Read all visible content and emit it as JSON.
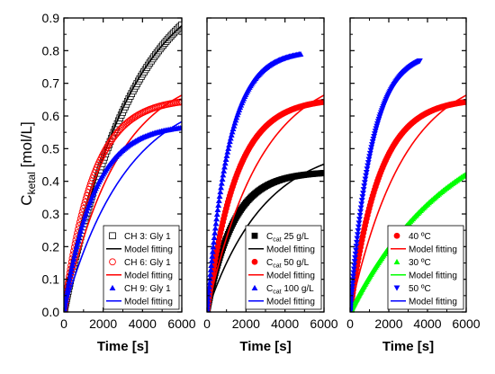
{
  "chart_data": {
    "type": "scatter",
    "ylabel": {
      "main": "C",
      "sub": "ketal",
      "unit": " [mol/L]"
    },
    "ylim": [
      0,
      0.9
    ],
    "yticks": [
      0.0,
      0.1,
      0.2,
      0.3,
      0.4,
      0.5,
      0.6,
      0.7,
      0.8,
      0.9
    ],
    "ytick_labels": [
      "0.0",
      "0.1",
      "0.2",
      "0.3",
      "0.4",
      "0.5",
      "0.6",
      "0.7",
      "0.8",
      "0.9"
    ],
    "grid": false,
    "colors": {
      "black": "#000000",
      "red": "#ff0000",
      "blue": "#0000ff",
      "green": "#00ff00"
    },
    "panels": [
      {
        "xlabel": "Time [s]",
        "xlim": [
          0,
          6000
        ],
        "xticks": [
          0,
          2000,
          4000,
          6000
        ],
        "xtick_labels": [
          "0",
          "2000",
          "4000",
          "6000"
        ],
        "legend_position": "bottom-right",
        "series": [
          {
            "type": "marker",
            "marker": "square-open",
            "color": "#000000",
            "A": 1.08,
            "k": 0.00028,
            "tmax": 6000,
            "label": {
              "main": "CH 3: Gly 1"
            }
          },
          {
            "type": "line",
            "color": "#000000",
            "A": 1.05,
            "k": 0.0003,
            "tmax": 6000,
            "label": {
              "main": "Model fitting"
            }
          },
          {
            "type": "marker",
            "marker": "circle-open",
            "color": "#ff0000",
            "A": 0.655,
            "k": 0.00067,
            "tmax": 6000,
            "label": {
              "main": "CH 6: Gly 1"
            }
          },
          {
            "type": "line",
            "color": "#ff0000",
            "A": 0.75,
            "k": 0.00036,
            "tmax": 6000,
            "label": {
              "main": "Model fitting"
            }
          },
          {
            "type": "marker",
            "marker": "triangle",
            "color": "#0000ff",
            "A": 0.575,
            "k": 0.00066,
            "tmax": 6000,
            "label": {
              "main": "CH 9: Gly 1"
            }
          },
          {
            "type": "line",
            "color": "#0000ff",
            "A": 0.69,
            "k": 0.00031,
            "tmax": 6000,
            "label": {
              "main": "Model fitting"
            }
          }
        ]
      },
      {
        "xlabel": "Time [s]",
        "xlim": [
          0,
          6000
        ],
        "xticks": [
          0,
          2000,
          4000,
          6000
        ],
        "xtick_labels": [
          "0",
          "2000",
          "4000",
          "6000"
        ],
        "legend_position": "bottom-right",
        "series": [
          {
            "type": "marker",
            "marker": "square",
            "color": "#000000",
            "A": 0.43,
            "k": 0.00075,
            "tmax": 6000,
            "label": {
              "main": "C",
              "sub": "cat",
              "rest": " 25 g/L"
            }
          },
          {
            "type": "line",
            "color": "#000000",
            "A": 0.52,
            "k": 0.00034,
            "tmax": 6000,
            "label": {
              "main": "Model fitting"
            }
          },
          {
            "type": "marker",
            "marker": "circle",
            "color": "#ff0000",
            "A": 0.655,
            "k": 0.00067,
            "tmax": 6000,
            "label": {
              "main": "C",
              "sub": "cat",
              "rest": " 50 g/L"
            }
          },
          {
            "type": "line",
            "color": "#ff0000",
            "A": 0.75,
            "k": 0.00036,
            "tmax": 6000,
            "label": {
              "main": "Model fitting"
            }
          },
          {
            "type": "marker",
            "marker": "triangle",
            "color": "#0000ff",
            "A": 0.8,
            "k": 0.0009,
            "tmax": 4800,
            "label": {
              "main": "C",
              "sub": "cat",
              "rest": " 100 g/L"
            }
          },
          {
            "type": "line",
            "color": "#0000ff",
            "A": 0.8,
            "k": 0.0009,
            "tmax": 4800,
            "label": {
              "main": "Model fitting"
            }
          }
        ]
      },
      {
        "xlabel": "Time [s]",
        "xlim": [
          0,
          6000
        ],
        "xticks": [
          0,
          2000,
          4000,
          6000
        ],
        "xtick_labels": [
          "0",
          "2000",
          "4000",
          "6000"
        ],
        "legend_position": "bottom-right",
        "series": [
          {
            "type": "marker",
            "marker": "circle",
            "color": "#ff0000",
            "A": 0.655,
            "k": 0.00067,
            "tmax": 6000,
            "label": {
              "main": "40 ºC"
            }
          },
          {
            "type": "line",
            "color": "#ff0000",
            "A": 0.75,
            "k": 0.00036,
            "tmax": 6000,
            "label": {
              "main": "Model fitting"
            }
          },
          {
            "type": "marker",
            "marker": "triangle",
            "color": "#00ff00",
            "A": 0.62,
            "k": 0.00019,
            "tmax": 6000,
            "label": {
              "main": "30 ºC"
            }
          },
          {
            "type": "line",
            "color": "#00ff00",
            "A": 0.62,
            "k": 0.00019,
            "tmax": 6000,
            "label": {
              "main": "Model fitting"
            }
          },
          {
            "type": "marker",
            "marker": "triangle-down",
            "color": "#0000ff",
            "A": 0.8,
            "k": 0.0009,
            "tmax": 3600,
            "label": {
              "main": "50 ºC"
            }
          },
          {
            "type": "line",
            "color": "#0000ff",
            "A": 0.8,
            "k": 0.0009,
            "tmax": 3600,
            "label": {
              "main": "Model fitting"
            }
          }
        ]
      }
    ]
  }
}
